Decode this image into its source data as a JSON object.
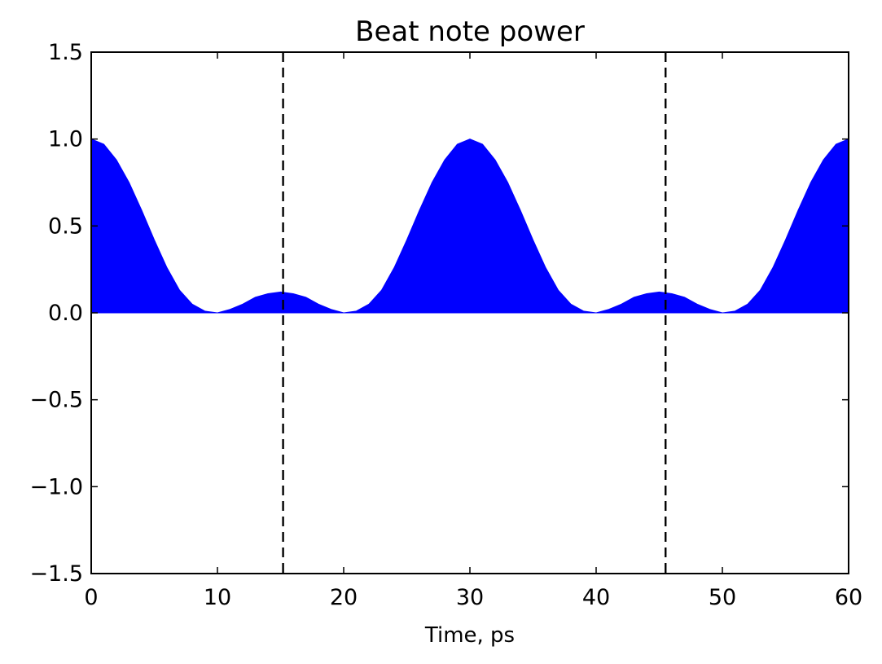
{
  "chart_data": {
    "type": "area",
    "title": "Beat note power",
    "xlabel": "Time, ps",
    "ylabel": "",
    "xlim": [
      0,
      60
    ],
    "ylim": [
      -1.5,
      1.5
    ],
    "grid": false,
    "x_ticks": [
      0,
      10,
      20,
      30,
      40,
      50,
      60
    ],
    "x_tick_labels": [
      "0",
      "10",
      "20",
      "30",
      "40",
      "50",
      "60"
    ],
    "y_ticks": [
      -1.5,
      -1.0,
      -0.5,
      0.0,
      0.5,
      1.0,
      1.5
    ],
    "y_tick_labels": [
      "−1.5",
      "−1.0",
      "−0.5",
      "0.0",
      "0.5",
      "1.0",
      "1.5"
    ],
    "series": [
      {
        "color": "#0000ff",
        "x": [
          0,
          1,
          2,
          3,
          4,
          5,
          6,
          7,
          8,
          9,
          10,
          11,
          12,
          13,
          14,
          15,
          16,
          17,
          18,
          19,
          20,
          21,
          22,
          23,
          24,
          25,
          26,
          27,
          28,
          29,
          30,
          31,
          32,
          33,
          34,
          35,
          36,
          37,
          38,
          39,
          40,
          41,
          42,
          43,
          44,
          45,
          46,
          47,
          48,
          49,
          50,
          51,
          52,
          53,
          54,
          55,
          56,
          57,
          58,
          59,
          60
        ],
        "values": [
          1.0,
          0.97,
          0.88,
          0.75,
          0.59,
          0.42,
          0.26,
          0.13,
          0.05,
          0.01,
          0.0,
          0.02,
          0.05,
          0.09,
          0.11,
          0.12,
          0.11,
          0.09,
          0.05,
          0.02,
          0.0,
          0.01,
          0.05,
          0.13,
          0.26,
          0.42,
          0.59,
          0.75,
          0.88,
          0.97,
          1.0,
          0.97,
          0.88,
          0.75,
          0.59,
          0.42,
          0.26,
          0.13,
          0.05,
          0.01,
          0.0,
          0.02,
          0.05,
          0.09,
          0.11,
          0.12,
          0.11,
          0.09,
          0.05,
          0.02,
          0.0,
          0.01,
          0.05,
          0.13,
          0.26,
          0.42,
          0.59,
          0.75,
          0.88,
          0.97,
          1.0
        ],
        "fill_to": 0
      }
    ],
    "vlines": [
      {
        "x": 15.2,
        "style": "dashed",
        "color": "#000000"
      },
      {
        "x": 45.5,
        "style": "dashed",
        "color": "#000000"
      }
    ]
  }
}
